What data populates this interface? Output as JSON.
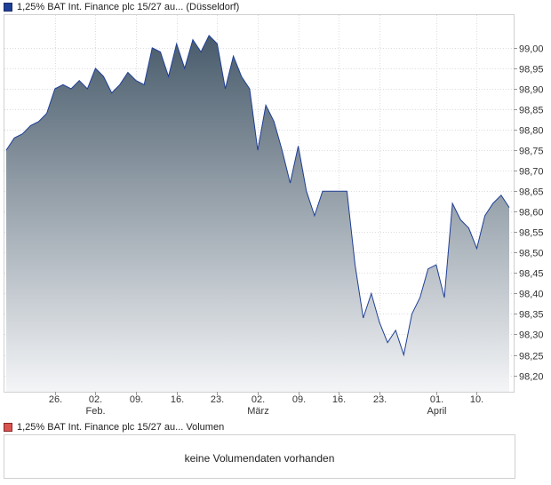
{
  "legend": {
    "price_label": "1,25% BAT Int. Finance plc 15/27 au... (Düsseldorf)",
    "price_color": "#1f3f96",
    "volume_label": "1,25% BAT Int. Finance plc 15/27 au... Volumen",
    "volume_color": "#d9534f"
  },
  "volume_panel": {
    "message": "keine Volumendaten vorhanden"
  },
  "chart_data": {
    "type": "area",
    "title": "",
    "xlabel": "",
    "ylabel": "",
    "ylim": [
      98.16,
      99.08
    ],
    "y_ticks": [
      "99,00",
      "98,95",
      "98,90",
      "98,85",
      "98,80",
      "98,75",
      "98,70",
      "98,65",
      "98,60",
      "98,55",
      "98,50",
      "98,45",
      "98,40",
      "98,35",
      "98,30",
      "98,25",
      "98,20"
    ],
    "y_tick_values": [
      99.0,
      98.95,
      98.9,
      98.85,
      98.8,
      98.75,
      98.7,
      98.65,
      98.6,
      98.55,
      98.5,
      98.45,
      98.4,
      98.35,
      98.3,
      98.25,
      98.2
    ],
    "x_ticks": [
      {
        "date": "26.",
        "month": "",
        "index": 6
      },
      {
        "date": "02.",
        "month": "Feb.",
        "index": 11
      },
      {
        "date": "09.",
        "month": "",
        "index": 16
      },
      {
        "date": "16.",
        "month": "",
        "index": 21
      },
      {
        "date": "23.",
        "month": "",
        "index": 26
      },
      {
        "date": "02.",
        "month": "März",
        "index": 31
      },
      {
        "date": "09.",
        "month": "",
        "index": 36
      },
      {
        "date": "16.",
        "month": "",
        "index": 41
      },
      {
        "date": "23.",
        "month": "",
        "index": 46
      },
      {
        "date": "01.",
        "month": "April",
        "index": 53
      },
      {
        "date": "10.",
        "month": "",
        "index": 58
      }
    ],
    "grid": true,
    "line_color": "#1f3f96",
    "fill_top_color": "#485b6b",
    "fill_bottom_color": "#f4f5f7",
    "series": [
      {
        "values": [
          98.75,
          98.78,
          98.79,
          98.81,
          98.82,
          98.84,
          98.9,
          98.91,
          98.9,
          98.92,
          98.9,
          98.95,
          98.93,
          98.89,
          98.91,
          98.94,
          98.92,
          98.91,
          99.0,
          98.99,
          98.93,
          99.01,
          98.95,
          99.02,
          98.99,
          99.03,
          99.01,
          98.9,
          98.98,
          98.93,
          98.9,
          98.75,
          98.86,
          98.82,
          98.75,
          98.67,
          98.76,
          98.65,
          98.59,
          98.65,
          98.65,
          98.65,
          98.65,
          98.47,
          98.34,
          98.4,
          98.33,
          98.28,
          98.31,
          98.25,
          98.35,
          98.39,
          98.46,
          98.47,
          98.39,
          98.62,
          98.58,
          98.56,
          98.51,
          98.59,
          98.62,
          98.64,
          98.61
        ]
      }
    ]
  }
}
